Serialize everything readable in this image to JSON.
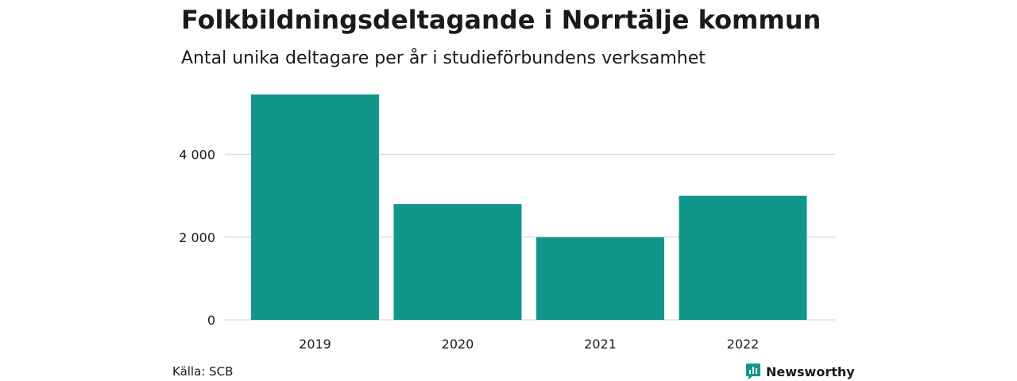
{
  "colors": {
    "bar": "#13968a",
    "grid": "#dddddd",
    "text": "#1a1a1a",
    "brand": "#13968a"
  },
  "chart_data": {
    "type": "bar",
    "title": "Folkbildningsdeltagande i Norrtälje kommun",
    "subtitle": "Antal unika deltagare per år i studieförbundens verksamhet",
    "categories": [
      "2019",
      "2020",
      "2021",
      "2022"
    ],
    "values": [
      5450,
      2800,
      2000,
      3000
    ],
    "ylim": [
      0,
      5450
    ],
    "yticks": [
      0,
      2000,
      4000
    ],
    "ytick_labels": [
      "0",
      "2 000",
      "4 000"
    ],
    "grid": true,
    "legend": "none"
  },
  "footer": {
    "source": "Källa: SCB",
    "brand": "Newsworthy",
    "brand_icon": "newsworthy-logo-icon"
  }
}
